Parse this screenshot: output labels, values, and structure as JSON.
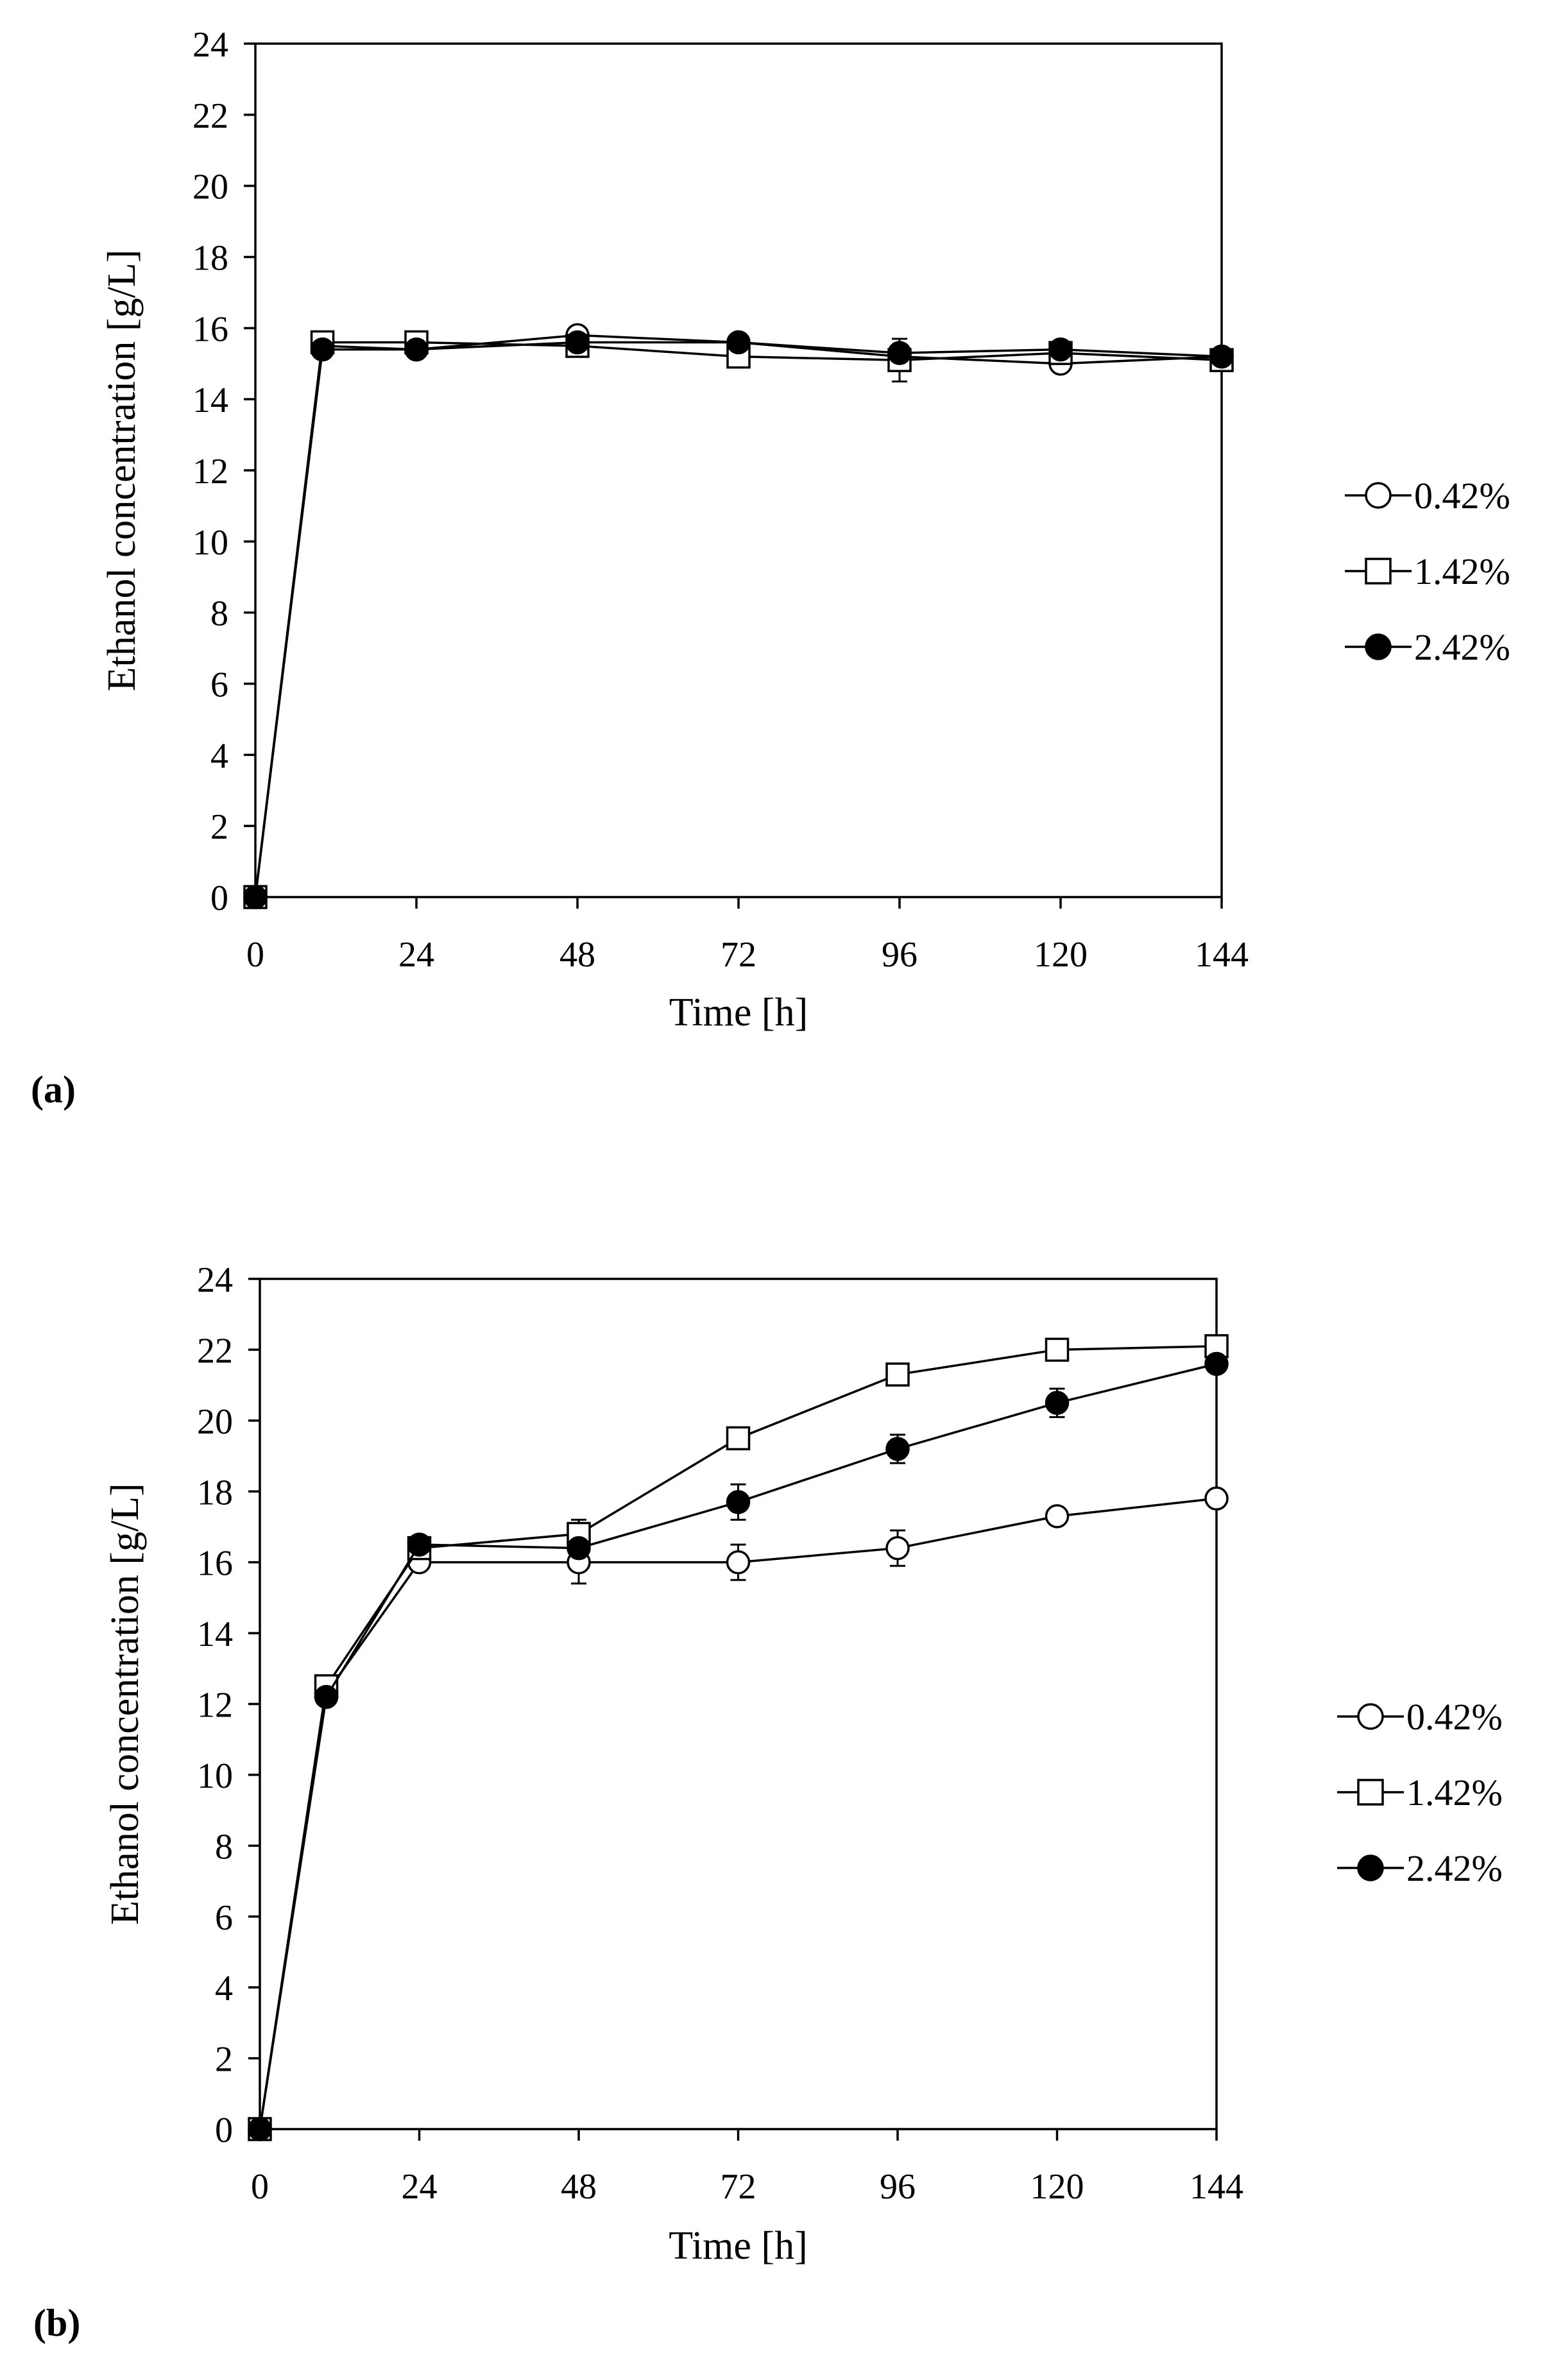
{
  "chart_data": [
    {
      "type": "line",
      "panel_label": "(a)",
      "title": "",
      "xlabel": "Time [h]",
      "ylabel": "Ethanol concentration [g/L]",
      "xlim": [
        0,
        144
      ],
      "ylim": [
        0,
        24
      ],
      "x_ticks": [
        "0",
        "24",
        "48",
        "72",
        "96",
        "120",
        "144"
      ],
      "y_ticks": [
        "0",
        "2",
        "4",
        "6",
        "8",
        "10",
        "12",
        "14",
        "16",
        "18",
        "20",
        "22",
        "24"
      ],
      "grid": false,
      "legend_position": "right",
      "x": [
        0,
        10,
        24,
        48,
        72,
        96,
        120,
        144
      ],
      "series": [
        {
          "name": "0.42%",
          "marker": "circle-open",
          "values": [
            0,
            15.5,
            15.4,
            15.8,
            15.6,
            15.2,
            15.0,
            15.2
          ],
          "errors": [
            0,
            0.1,
            0.15,
            0.1,
            0.2,
            0.2,
            0.15,
            0.1
          ]
        },
        {
          "name": "1.42%",
          "marker": "square-open",
          "values": [
            0,
            15.6,
            15.6,
            15.5,
            15.2,
            15.1,
            15.3,
            15.1
          ],
          "errors": [
            0,
            0.1,
            0.1,
            0.1,
            0.2,
            0.6,
            0.2,
            0.1
          ]
        },
        {
          "name": "2.42%",
          "marker": "circle-filled",
          "values": [
            0,
            15.4,
            15.4,
            15.6,
            15.6,
            15.3,
            15.4,
            15.2
          ],
          "errors": [
            0,
            0.1,
            0.1,
            0.15,
            0.1,
            0.2,
            0.2,
            0.1
          ]
        }
      ]
    },
    {
      "type": "line",
      "panel_label": "(b)",
      "title": "",
      "xlabel": "Time [h]",
      "ylabel": "Ethanol concentration [g/L]",
      "xlim": [
        0,
        144
      ],
      "ylim": [
        0,
        24
      ],
      "x_ticks": [
        "0",
        "24",
        "48",
        "72",
        "96",
        "120",
        "144"
      ],
      "y_ticks": [
        "0",
        "2",
        "4",
        "6",
        "8",
        "10",
        "12",
        "14",
        "16",
        "18",
        "20",
        "22",
        "24"
      ],
      "grid": false,
      "legend_position": "right",
      "x": [
        0,
        10,
        24,
        48,
        72,
        96,
        120,
        144
      ],
      "series": [
        {
          "name": "0.42%",
          "marker": "circle-open",
          "values": [
            0,
            12.3,
            16.0,
            16.0,
            16.0,
            16.4,
            17.3,
            17.8
          ],
          "errors": [
            0,
            0.2,
            0.2,
            0.6,
            0.5,
            0.5,
            0.1,
            0.1
          ]
        },
        {
          "name": "1.42%",
          "marker": "square-open",
          "values": [
            0,
            12.5,
            16.4,
            16.8,
            19.5,
            21.3,
            22.0,
            22.1
          ],
          "errors": [
            0,
            0.2,
            0.2,
            0.4,
            0.2,
            0.2,
            0.1,
            0.1
          ]
        },
        {
          "name": "2.42%",
          "marker": "circle-filled",
          "values": [
            0,
            12.2,
            16.5,
            16.4,
            17.7,
            19.2,
            20.5,
            21.6
          ],
          "errors": [
            0,
            0.2,
            0.2,
            0.2,
            0.5,
            0.4,
            0.4,
            0.2
          ]
        }
      ]
    }
  ]
}
